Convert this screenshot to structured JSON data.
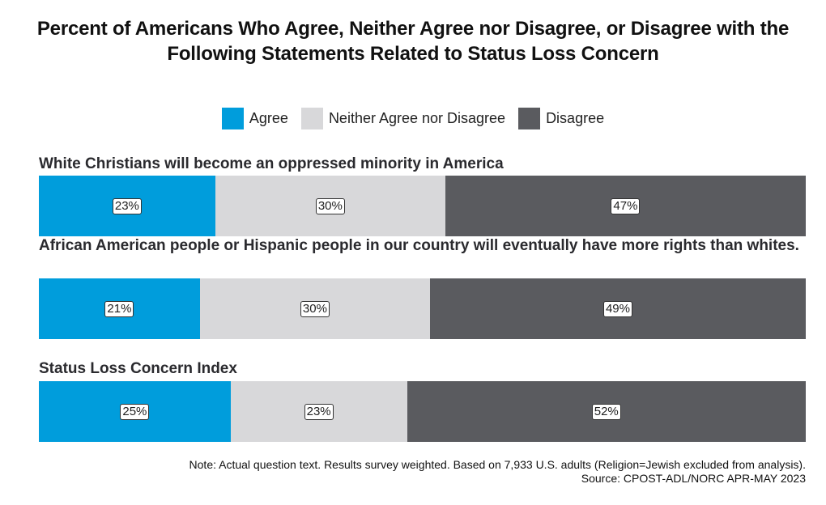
{
  "chart_data": {
    "type": "bar",
    "orientation": "horizontal-stacked-100",
    "title": "Percent of Americans Who Agree, Neither Agree nor Disagree, or Disagree with the Following Statements Related to Status Loss Concern",
    "legend_position": "top",
    "categories": [
      "White Christians will become an oppressed minority in America",
      "African American people or Hispanic people in our country will eventually have more rights than whites.",
      "Status Loss Concern Index"
    ],
    "series": [
      {
        "name": "Agree",
        "color": "#009ddc",
        "values": [
          23,
          21,
          25
        ],
        "labels": [
          "23%",
          "21%",
          "25%"
        ]
      },
      {
        "name": "Neither Agree nor Disagree",
        "color": "#d8d8da",
        "values": [
          30,
          30,
          23
        ],
        "labels": [
          "30%",
          "30%",
          "23%"
        ]
      },
      {
        "name": "Disagree",
        "color": "#5a5b5f",
        "values": [
          47,
          49,
          52
        ],
        "labels": [
          "47%",
          "49%",
          "52%"
        ]
      }
    ],
    "grid": false
  },
  "note": "Note: Actual question text. Results survey weighted. Based on 7,933 U.S. adults (Religion=Jewish excluded from analysis).",
  "source": "Source: CPOST-ADL/NORC APR-MAY 2023"
}
